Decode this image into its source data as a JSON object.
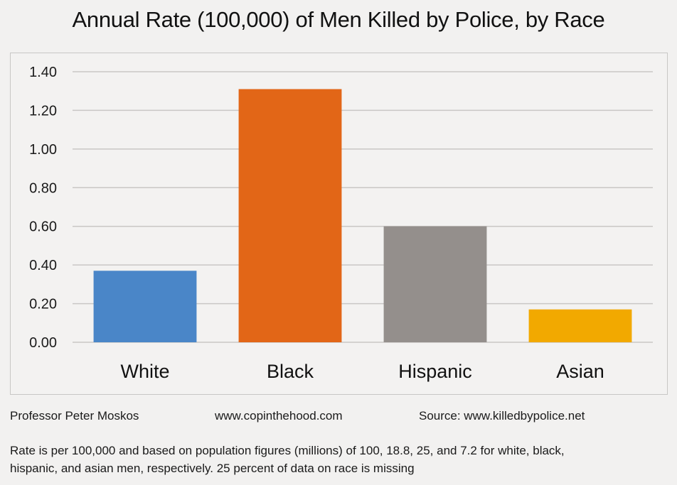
{
  "chart_data": {
    "type": "bar",
    "title": "Annual Rate (100,000) of Men Killed by Police, by Race",
    "xlabel": "",
    "ylabel": "",
    "categories": [
      "White",
      "Black",
      "Hispanic",
      "Asian"
    ],
    "values": [
      0.37,
      1.31,
      0.6,
      0.17
    ],
    "colors": [
      "#4a86c8",
      "#e26617",
      "#948f8c",
      "#f2a900"
    ],
    "ylim": [
      0,
      1.4
    ],
    "yticks": [
      "0.00",
      "0.20",
      "0.40",
      "0.60",
      "0.80",
      "1.00",
      "1.20",
      "1.40"
    ],
    "ytick_values": [
      0,
      0.2,
      0.4,
      0.6,
      0.8,
      1.0,
      1.2,
      1.4
    ],
    "grid": true,
    "legend": "none"
  },
  "footer": {
    "author": "Professor Peter Moskos",
    "website": "www.copinthehood.com",
    "source": "Source: www.killedbypolice.net",
    "note_line1": "Rate is per 100,000 and based on population figures (millions) of 100, 18.8, 25, and 7.2 for white, black,",
    "note_line2": "hispanic, and asian men, respectively.  25 percent of data on race is missing"
  }
}
